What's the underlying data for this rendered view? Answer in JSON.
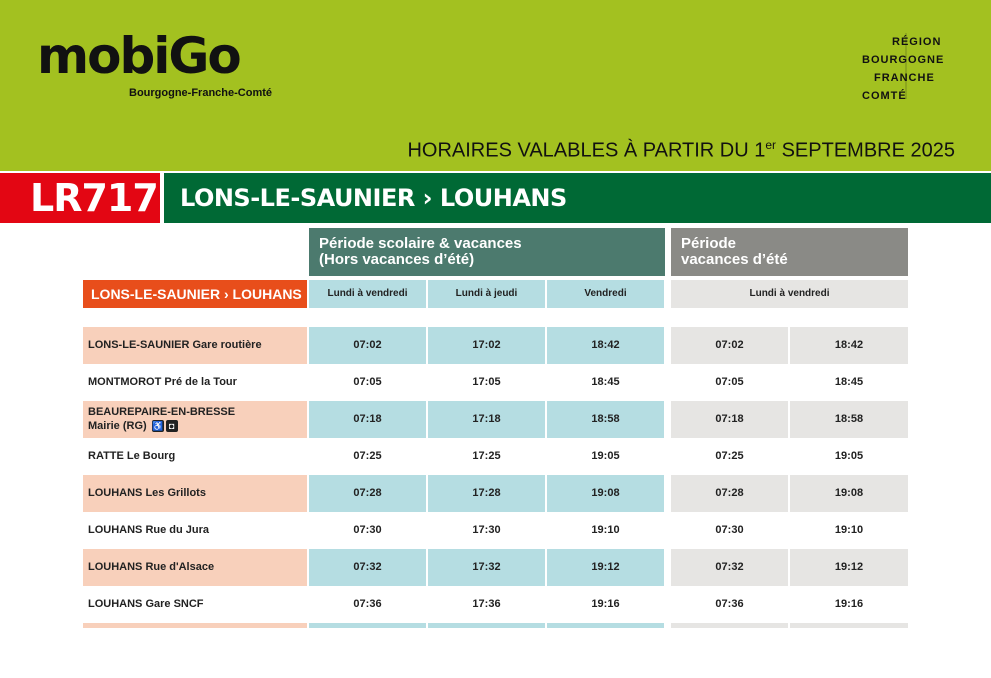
{
  "header": {
    "brand": "mobiGo",
    "brand_subtitle": "Bourgogne-Franche-Comté",
    "region_lines": [
      "RÉGION",
      "BOURGOGNE",
      "FRANCHE",
      "COMTÉ"
    ],
    "validity_prefix": "HORAIRES VALABLES À PARTIR DU 1",
    "validity_sup": "er",
    "validity_suffix": " SEPTEMBRE 2025"
  },
  "line": {
    "code": "LR717",
    "route": "LONS-LE-SAUNIER › LOUHANS"
  },
  "periods": {
    "school": "Période scolaire & vacances\n(Hors vacances d’été)",
    "summer": "Période\nvacances d’été"
  },
  "direction_label": "LONS-LE-SAUNIER › LOUHANS",
  "day_headers": [
    "Lundi à vendredi",
    "Lundi à jeudi",
    "Vendredi",
    "Lundi à vendredi"
  ],
  "colors": {
    "header_green": "#a3c120",
    "line_red": "#e30613",
    "route_green": "#006935",
    "direction_orange": "#e84e1b",
    "school_header": "#4c7a6e",
    "summer_header": "#8a8a86",
    "school_cell": "#b5dde2",
    "summer_cell": "#e6e5e3",
    "stop_cell": "#f8d0bb"
  },
  "stops": [
    {
      "name": "LONS-LE-SAUNIER Gare routière",
      "times": [
        "07:02",
        "17:02",
        "18:42",
        "07:02",
        "18:42"
      ]
    },
    {
      "name": "MONTMOROT Pré de la Tour",
      "times": [
        "07:05",
        "17:05",
        "18:45",
        "07:05",
        "18:45"
      ]
    },
    {
      "name_line1": "BEAUREPAIRE-EN-BRESSE",
      "name_line2": "Mairie (RG)",
      "icons": [
        "wheelchair-icon",
        "bus-icon"
      ],
      "times": [
        "07:18",
        "17:18",
        "18:58",
        "07:18",
        "18:58"
      ]
    },
    {
      "name": "RATTE Le Bourg",
      "times": [
        "07:25",
        "17:25",
        "19:05",
        "07:25",
        "19:05"
      ]
    },
    {
      "name": "LOUHANS Les Grillots",
      "times": [
        "07:28",
        "17:28",
        "19:08",
        "07:28",
        "19:08"
      ]
    },
    {
      "name": "LOUHANS Rue du Jura",
      "times": [
        "07:30",
        "17:30",
        "19:10",
        "07:30",
        "19:10"
      ]
    },
    {
      "name": "LOUHANS Rue d'Alsace",
      "times": [
        "07:32",
        "17:32",
        "19:12",
        "07:32",
        "19:12"
      ]
    },
    {
      "name": "LOUHANS Gare SNCF",
      "times": [
        "07:36",
        "17:36",
        "19:16",
        "07:36",
        "19:16"
      ]
    }
  ]
}
